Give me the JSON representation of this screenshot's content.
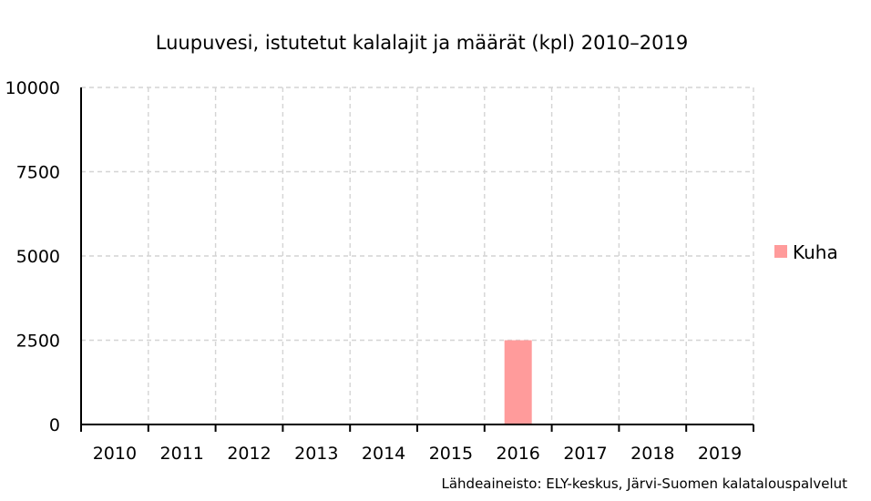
{
  "chart_data": {
    "type": "bar",
    "title": "Luupuvesi, istutetut kalalajit ja määrät (kpl) 2010–2019",
    "categories": [
      "2010",
      "2011",
      "2012",
      "2013",
      "2014",
      "2015",
      "2016",
      "2017",
      "2018",
      "2019"
    ],
    "series": [
      {
        "name": "Kuha",
        "color": "#ff9b9b",
        "values": [
          0,
          0,
          0,
          0,
          0,
          0,
          2500,
          0,
          0,
          0
        ]
      }
    ],
    "ylim": [
      0,
      10000
    ],
    "yticks": [
      "0",
      "2500",
      "5000",
      "7500",
      "10000"
    ],
    "grid": true,
    "legend_position": "right",
    "source": "Lähdeaineisto: ELY-keskus, Järvi-Suomen kalatalouspalvelut"
  }
}
